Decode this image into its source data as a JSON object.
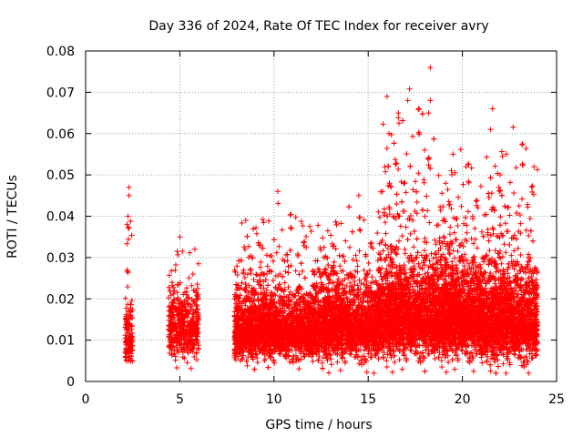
{
  "chart_data": {
    "type": "scatter",
    "title": "Day 336 of 2024, Rate Of TEC Index for receiver avry",
    "xlabel": "GPS time / hours",
    "ylabel": "ROTI / TECUs",
    "xlim": [
      0,
      25
    ],
    "ylim": [
      0,
      0.08
    ],
    "x_ticks": [
      0,
      5,
      10,
      15,
      20,
      25
    ],
    "x_tick_labels": [
      "0",
      "5",
      "10",
      "15",
      "20",
      "25"
    ],
    "y_ticks": [
      0,
      0.01,
      0.02,
      0.03,
      0.04,
      0.05,
      0.06,
      0.07,
      0.08
    ],
    "y_tick_labels": [
      "0",
      "0.01",
      "0.02",
      "0.03",
      "0.04",
      "0.05",
      "0.06",
      "0.07",
      "0.08"
    ],
    "grid": true,
    "marker": "+",
    "color": "#ff0000",
    "clusters": [
      {
        "x_range": [
          2.1,
          2.5
        ],
        "baseline": 0.01,
        "spread": 0.004,
        "max": 0.047,
        "density": 6
      },
      {
        "x_range": [
          4.4,
          6.0
        ],
        "baseline": 0.012,
        "spread": 0.005,
        "max": 0.035,
        "density": 5
      },
      {
        "x_range": [
          7.9,
          12.0
        ],
        "baseline": 0.012,
        "spread": 0.005,
        "max": 0.046,
        "density": 10
      },
      {
        "x_range": [
          12.0,
          15.5
        ],
        "baseline": 0.013,
        "spread": 0.006,
        "max": 0.045,
        "density": 9
      },
      {
        "x_range": [
          15.5,
          18.5
        ],
        "baseline": 0.015,
        "spread": 0.007,
        "max": 0.076,
        "density": 12
      },
      {
        "x_range": [
          18.5,
          21.0
        ],
        "baseline": 0.015,
        "spread": 0.007,
        "max": 0.06,
        "density": 11
      },
      {
        "x_range": [
          21.0,
          24.0
        ],
        "baseline": 0.014,
        "spread": 0.007,
        "max": 0.066,
        "density": 11
      }
    ],
    "highlights": [
      {
        "x": 2.3,
        "y": 0.047
      },
      {
        "x": 2.3,
        "y": 0.045
      },
      {
        "x": 2.25,
        "y": 0.04
      },
      {
        "x": 2.2,
        "y": 0.027
      },
      {
        "x": 5.0,
        "y": 0.035
      },
      {
        "x": 5.8,
        "y": 0.032
      },
      {
        "x": 8.5,
        "y": 0.039
      },
      {
        "x": 10.2,
        "y": 0.046
      },
      {
        "x": 14.5,
        "y": 0.045
      },
      {
        "x": 16.0,
        "y": 0.069
      },
      {
        "x": 16.6,
        "y": 0.065
      },
      {
        "x": 17.1,
        "y": 0.068
      },
      {
        "x": 18.3,
        "y": 0.076
      },
      {
        "x": 18.3,
        "y": 0.068
      },
      {
        "x": 18.2,
        "y": 0.065
      },
      {
        "x": 18.0,
        "y": 0.056
      },
      {
        "x": 16.1,
        "y": 0.06
      },
      {
        "x": 19.5,
        "y": 0.055
      },
      {
        "x": 20.2,
        "y": 0.052
      },
      {
        "x": 21.6,
        "y": 0.066
      },
      {
        "x": 21.5,
        "y": 0.061
      },
      {
        "x": 22.0,
        "y": 0.05
      },
      {
        "x": 23.8,
        "y": 0.052
      },
      {
        "x": 15.3,
        "y": 0.002
      }
    ]
  }
}
